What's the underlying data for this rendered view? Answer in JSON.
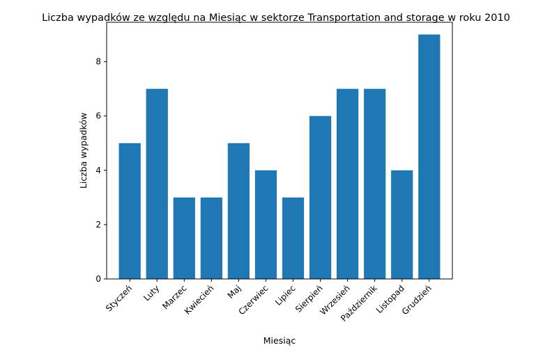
{
  "chart_data": {
    "type": "bar",
    "title": "Liczba wypadków ze względu na Miesiąc w sektorze Transportation and storage  w roku 2010",
    "xlabel": "Miesiąc",
    "ylabel": "Liczba wypadków",
    "categories": [
      "Styczeń",
      "Luty",
      "Marzec",
      "Kwiecień",
      "Maj",
      "Czerwiec",
      "Lipiec",
      "Sierpień",
      "Wrzesień",
      "Październik",
      "Listopad",
      "Grudzień"
    ],
    "values": [
      5,
      7,
      3,
      3,
      5,
      4,
      3,
      6,
      7,
      7,
      4,
      9
    ],
    "ylim": [
      0,
      9.45
    ],
    "yticks": [
      0,
      2,
      4,
      6,
      8
    ],
    "grid": false,
    "colors": {
      "bar": "#1f77b4",
      "axis": "#000000"
    }
  }
}
